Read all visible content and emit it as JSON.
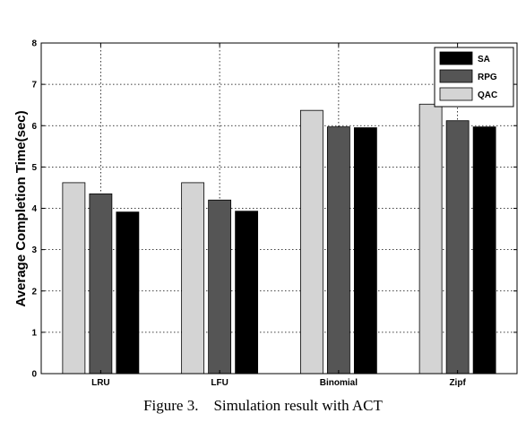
{
  "chart_data": {
    "type": "bar",
    "categories": [
      "LRU",
      "LFU",
      "Binomial",
      "Zipf"
    ],
    "series": [
      {
        "name": "QAC",
        "color": "#d4d4d4",
        "values": [
          4.62,
          4.62,
          6.37,
          6.52
        ]
      },
      {
        "name": "RPG",
        "color": "#555555",
        "values": [
          4.35,
          4.2,
          5.97,
          6.12
        ]
      },
      {
        "name": "SA",
        "color": "#000000",
        "values": [
          3.91,
          3.93,
          5.95,
          5.97
        ]
      }
    ],
    "legend_order": [
      "SA",
      "RPG",
      "QAC"
    ],
    "ylabel": "Average Completion Time(sec)",
    "xlabel": "",
    "ylim": [
      0,
      8
    ],
    "yticks": [
      "0",
      "1",
      "2",
      "3",
      "4",
      "5",
      "6",
      "7",
      "8"
    ],
    "grid": true,
    "grid_style": "dotted",
    "legend_position": "top-right"
  },
  "caption": "Figure 3.    Simulation result with ACT"
}
